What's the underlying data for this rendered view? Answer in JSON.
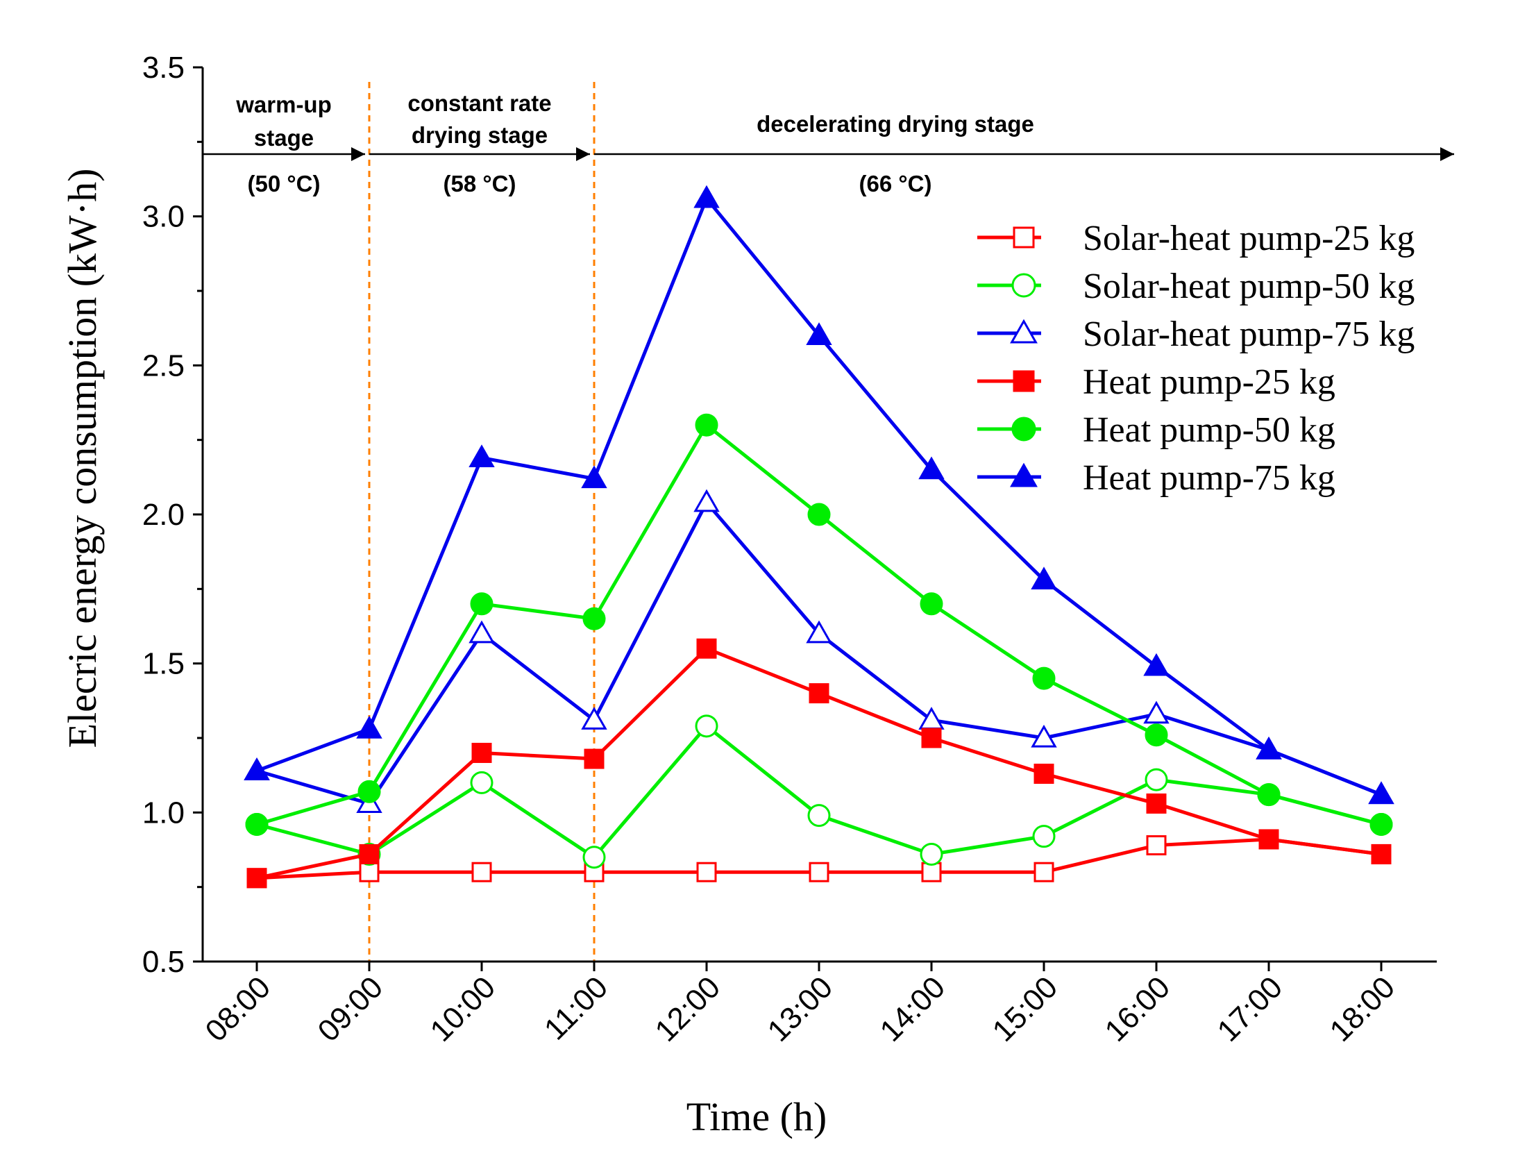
{
  "chart_data": {
    "type": "line",
    "xlabel": "Time (h)",
    "ylabel": "Elecric energy consumption (kW·h)",
    "categories": [
      "08:00",
      "09:00",
      "10:00",
      "11:00",
      "12:00",
      "13:00",
      "14:00",
      "15:00",
      "16:00",
      "17:00",
      "18:00"
    ],
    "ylim": [
      0.5,
      3.5
    ],
    "yticks": [
      {
        "value": 0.5,
        "label": "0.5"
      },
      {
        "value": 1.0,
        "label": "1.0"
      },
      {
        "value": 1.5,
        "label": "1.5"
      },
      {
        "value": 2.0,
        "label": "2.0"
      },
      {
        "value": 2.5,
        "label": "2.5"
      },
      {
        "value": 3.0,
        "label": "3.0"
      },
      {
        "value": 3.5,
        "label": "3.5"
      }
    ],
    "series": [
      {
        "name": "Solar-heat pump-25 kg",
        "color": "#ff0000",
        "marker": "square",
        "filled": false,
        "values": [
          0.78,
          0.8,
          0.8,
          0.8,
          0.8,
          0.8,
          0.8,
          0.8,
          0.89,
          0.91,
          0.86
        ]
      },
      {
        "name": "Solar-heat pump-50 kg",
        "color": "#00ee00",
        "marker": "circle",
        "filled": false,
        "values": [
          0.96,
          0.86,
          1.1,
          0.85,
          1.29,
          0.99,
          0.86,
          0.92,
          1.11,
          1.06,
          0.96
        ]
      },
      {
        "name": "Solar-heat pump-75 kg",
        "color": "#0000ee",
        "marker": "triangle",
        "filled": false,
        "values": [
          1.14,
          1.03,
          1.6,
          1.31,
          2.04,
          1.6,
          1.31,
          1.25,
          1.33,
          1.21,
          1.06
        ]
      },
      {
        "name": "Heat pump-25 kg",
        "color": "#ff0000",
        "marker": "square",
        "filled": true,
        "values": [
          0.78,
          0.86,
          1.2,
          1.18,
          1.55,
          1.4,
          1.25,
          1.13,
          1.03,
          0.91,
          0.86
        ]
      },
      {
        "name": "Heat pump-50 kg",
        "color": "#00ee00",
        "marker": "circle",
        "filled": true,
        "values": [
          0.96,
          1.07,
          1.7,
          1.65,
          2.3,
          2.0,
          1.7,
          1.45,
          1.26,
          1.06,
          0.96
        ]
      },
      {
        "name": "Heat pump-75 kg",
        "color": "#0000ee",
        "marker": "triangle",
        "filled": true,
        "values": [
          1.14,
          1.28,
          2.19,
          2.12,
          3.06,
          2.6,
          2.15,
          1.78,
          1.49,
          1.21,
          1.06
        ]
      }
    ],
    "stage_dividers": [
      "09:00",
      "11:00"
    ],
    "stages": [
      {
        "name_lines": [
          "warm-up",
          "stage"
        ],
        "temperature": "(50 °C)",
        "from": "08:00",
        "to": "09:00"
      },
      {
        "name_lines": [
          "constant rate",
          "drying stage"
        ],
        "temperature": "(58 °C)",
        "from": "09:00",
        "to": "11:00"
      },
      {
        "name_lines": [
          "decelerating drying stage"
        ],
        "temperature": "(66 °C)",
        "from": "11:00",
        "to": "18:00"
      }
    ],
    "legend_position": "top-right"
  }
}
